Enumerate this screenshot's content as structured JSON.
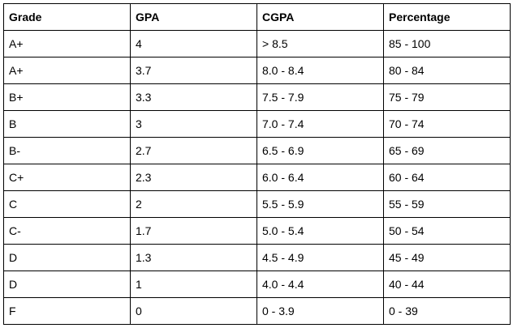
{
  "table": {
    "headers": [
      "Grade",
      "GPA",
      "CGPA",
      "Percentage"
    ],
    "rows": [
      [
        "A+",
        "4",
        "> 8.5",
        "85 - 100"
      ],
      [
        "A+",
        "3.7",
        "8.0 - 8.4",
        "80 - 84"
      ],
      [
        "B+",
        "3.3",
        "7.5 - 7.9",
        "75 - 79"
      ],
      [
        "B",
        "3",
        "7.0 - 7.4",
        "70 - 74"
      ],
      [
        "B-",
        "2.7",
        "6.5 - 6.9",
        "65 - 69"
      ],
      [
        "C+",
        "2.3",
        "6.0 - 6.4",
        "60 - 64"
      ],
      [
        "C",
        "2",
        "5.5 - 5.9",
        "55 - 59"
      ],
      [
        "C-",
        "1.7",
        "5.0 - 5.4",
        "50 - 54"
      ],
      [
        "D",
        "1.3",
        "4.5 - 4.9",
        "45 - 49"
      ],
      [
        "D",
        "1",
        "4.0 - 4.4",
        "40 - 44"
      ],
      [
        "F",
        "0",
        "0 - 3.9",
        "0 - 39"
      ]
    ]
  }
}
